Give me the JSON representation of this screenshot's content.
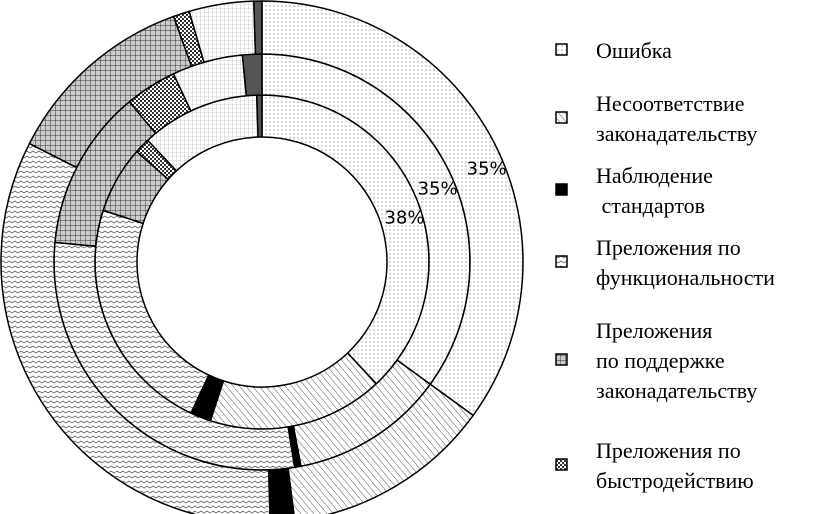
{
  "chart_data": {
    "type": "donut",
    "categories": [
      "Ошибка",
      "Несоответствие\nзаконадательству",
      "Наблюдение\n стандартов",
      "Преложения по\nфункциональности",
      "Преложения\nпо поддержке\nзаконадательству",
      "Преложения по\nбыстродействию",
      null,
      null
    ],
    "fills": [
      "dots",
      "hatch",
      "black",
      "zigzag",
      "grid",
      "checker",
      "lightgrid",
      "darkgray"
    ],
    "series": [
      {
        "values": [
          38,
          17,
          2,
          23,
          6.5,
          1.5,
          11.5,
          0.5
        ],
        "value_labels": [
          "38%",
          null,
          null,
          null,
          null,
          null,
          null,
          null
        ]
      },
      {
        "values": [
          35,
          12,
          0.5,
          29,
          12.5,
          4,
          5.5,
          1.5
        ],
        "value_labels": [
          "35%",
          null,
          null,
          null,
          null,
          null,
          null,
          null
        ]
      },
      {
        "values": [
          35,
          13,
          1.5,
          33,
          12,
          1,
          4,
          0.5
        ],
        "value_labels": [
          "35%",
          null,
          null,
          null,
          null,
          null,
          null,
          null
        ]
      }
    ]
  }
}
